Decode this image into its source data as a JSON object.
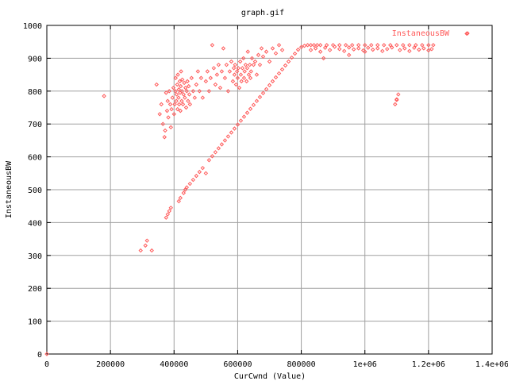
{
  "chart_data": {
    "type": "scatter",
    "title": "graph.gif",
    "xlabel": "CurCwnd (Value)",
    "ylabel": "InstaneousBW",
    "xlim": [
      0,
      1400000
    ],
    "ylim": [
      0,
      1000
    ],
    "x_ticks": [
      0,
      200000,
      400000,
      600000,
      800000,
      1000000,
      1200000,
      1400000
    ],
    "x_tick_labels": [
      "0",
      "200000",
      "400000",
      "600000",
      "800000",
      "1e+06",
      "1.2e+06",
      "1.4e+06"
    ],
    "y_ticks": [
      0,
      100,
      200,
      300,
      400,
      500,
      600,
      700,
      800,
      900,
      1000
    ],
    "y_tick_labels": [
      "0",
      "100",
      "200",
      "300",
      "400",
      "500",
      "600",
      "700",
      "800",
      "900",
      "1000"
    ],
    "grid": true,
    "legend_position": "top-right",
    "series": [
      {
        "name": "InstaneousBW",
        "color": "#ff5a5a",
        "marker": "diamond",
        "points": [
          [
            0,
            0
          ],
          [
            180000,
            785
          ],
          [
            295000,
            315
          ],
          [
            310000,
            330
          ],
          [
            315000,
            345
          ],
          [
            330000,
            315
          ],
          [
            345000,
            820
          ],
          [
            355000,
            730
          ],
          [
            360000,
            760
          ],
          [
            365000,
            700
          ],
          [
            370000,
            660
          ],
          [
            372000,
            680
          ],
          [
            375000,
            795
          ],
          [
            378000,
            740
          ],
          [
            380000,
            770
          ],
          [
            382000,
            720
          ],
          [
            385000,
            800
          ],
          [
            388000,
            760
          ],
          [
            390000,
            690
          ],
          [
            392000,
            745
          ],
          [
            395000,
            780
          ],
          [
            398000,
            810
          ],
          [
            400000,
            730
          ],
          [
            402000,
            760
          ],
          [
            404000,
            800
          ],
          [
            405000,
            840
          ],
          [
            407000,
            770
          ],
          [
            408000,
            790
          ],
          [
            410000,
            820
          ],
          [
            411000,
            745
          ],
          [
            412000,
            850
          ],
          [
            414000,
            780
          ],
          [
            415000,
            805
          ],
          [
            416000,
            760
          ],
          [
            418000,
            830
          ],
          [
            419000,
            795
          ],
          [
            420000,
            740
          ],
          [
            421000,
            815
          ],
          [
            422000,
            860
          ],
          [
            424000,
            770
          ],
          [
            425000,
            800
          ],
          [
            426000,
            835
          ],
          [
            428000,
            760
          ],
          [
            430000,
            790
          ],
          [
            432000,
            825
          ],
          [
            434000,
            780
          ],
          [
            436000,
            810
          ],
          [
            438000,
            750
          ],
          [
            440000,
            800
          ],
          [
            442000,
            830
          ],
          [
            444000,
            770
          ],
          [
            446000,
            815
          ],
          [
            448000,
            790
          ],
          [
            450000,
            760
          ],
          [
            455000,
            840
          ],
          [
            460000,
            800
          ],
          [
            465000,
            780
          ],
          [
            470000,
            820
          ],
          [
            475000,
            860
          ],
          [
            480000,
            800
          ],
          [
            485000,
            840
          ],
          [
            490000,
            780
          ],
          [
            500000,
            830
          ],
          [
            505000,
            860
          ],
          [
            510000,
            800
          ],
          [
            515000,
            840
          ],
          [
            520000,
            940
          ],
          [
            525000,
            870
          ],
          [
            530000,
            820
          ],
          [
            535000,
            850
          ],
          [
            540000,
            880
          ],
          [
            545000,
            810
          ],
          [
            550000,
            860
          ],
          [
            555000,
            930
          ],
          [
            560000,
            840
          ],
          [
            565000,
            880
          ],
          [
            570000,
            800
          ],
          [
            575000,
            860
          ],
          [
            580000,
            890
          ],
          [
            585000,
            830
          ],
          [
            588000,
            870
          ],
          [
            590000,
            850
          ],
          [
            592000,
            880
          ],
          [
            595000,
            820
          ],
          [
            598000,
            860
          ],
          [
            600000,
            840
          ],
          [
            602000,
            870
          ],
          [
            605000,
            810
          ],
          [
            608000,
            890
          ],
          [
            610000,
            850
          ],
          [
            612000,
            830
          ],
          [
            615000,
            870
          ],
          [
            618000,
            900
          ],
          [
            620000,
            840
          ],
          [
            622000,
            860
          ],
          [
            625000,
            880
          ],
          [
            628000,
            830
          ],
          [
            630000,
            870
          ],
          [
            632000,
            920
          ],
          [
            635000,
            850
          ],
          [
            638000,
            880
          ],
          [
            640000,
            840
          ],
          [
            642000,
            860
          ],
          [
            645000,
            900
          ],
          [
            650000,
            880
          ],
          [
            655000,
            890
          ],
          [
            660000,
            850
          ],
          [
            665000,
            910
          ],
          [
            670000,
            880
          ],
          [
            675000,
            930
          ],
          [
            680000,
            905
          ],
          [
            690000,
            920
          ],
          [
            700000,
            890
          ],
          [
            710000,
            930
          ],
          [
            720000,
            915
          ],
          [
            730000,
            940
          ],
          [
            740000,
            925
          ],
          [
            375000,
            415
          ],
          [
            380000,
            425
          ],
          [
            385000,
            435
          ],
          [
            390000,
            445
          ],
          [
            415000,
            465
          ],
          [
            420000,
            475
          ],
          [
            430000,
            490
          ],
          [
            435000,
            500
          ],
          [
            440000,
            507
          ],
          [
            450000,
            518
          ],
          [
            460000,
            530
          ],
          [
            470000,
            542
          ],
          [
            480000,
            554
          ],
          [
            490000,
            566
          ],
          [
            500000,
            550
          ],
          [
            510000,
            590
          ],
          [
            520000,
            602
          ],
          [
            530000,
            614
          ],
          [
            540000,
            626
          ],
          [
            550000,
            638
          ],
          [
            560000,
            650
          ],
          [
            570000,
            662
          ],
          [
            580000,
            674
          ],
          [
            590000,
            686
          ],
          [
            600000,
            698
          ],
          [
            610000,
            710
          ],
          [
            620000,
            722
          ],
          [
            630000,
            734
          ],
          [
            640000,
            746
          ],
          [
            650000,
            758
          ],
          [
            660000,
            770
          ],
          [
            670000,
            782
          ],
          [
            680000,
            794
          ],
          [
            690000,
            806
          ],
          [
            700000,
            818
          ],
          [
            710000,
            830
          ],
          [
            720000,
            842
          ],
          [
            730000,
            854
          ],
          [
            740000,
            866
          ],
          [
            750000,
            878
          ],
          [
            760000,
            890
          ],
          [
            770000,
            902
          ],
          [
            780000,
            914
          ],
          [
            790000,
            926
          ],
          [
            800000,
            934
          ],
          [
            810000,
            938
          ],
          [
            820000,
            940
          ],
          [
            830000,
            940
          ],
          [
            840000,
            940
          ],
          [
            850000,
            940
          ],
          [
            860000,
            940
          ],
          [
            880000,
            940
          ],
          [
            900000,
            940
          ],
          [
            920000,
            940
          ],
          [
            940000,
            940
          ],
          [
            960000,
            940
          ],
          [
            980000,
            940
          ],
          [
            1000000,
            940
          ],
          [
            1020000,
            940
          ],
          [
            1040000,
            940
          ],
          [
            1060000,
            940
          ],
          [
            1080000,
            940
          ],
          [
            1100000,
            940
          ],
          [
            1120000,
            940
          ],
          [
            1140000,
            940
          ],
          [
            1160000,
            940
          ],
          [
            1180000,
            940
          ],
          [
            1200000,
            940
          ],
          [
            1215000,
            940
          ],
          [
            830000,
            925
          ],
          [
            845000,
            930
          ],
          [
            860000,
            920
          ],
          [
            875000,
            932
          ],
          [
            890000,
            925
          ],
          [
            905000,
            935
          ],
          [
            920000,
            928
          ],
          [
            935000,
            922
          ],
          [
            950000,
            933
          ],
          [
            965000,
            927
          ],
          [
            980000,
            930
          ],
          [
            995000,
            924
          ],
          [
            1010000,
            932
          ],
          [
            1025000,
            926
          ],
          [
            1040000,
            930
          ],
          [
            1055000,
            922
          ],
          [
            1070000,
            928
          ],
          [
            1085000,
            933
          ],
          [
            1095000,
            760
          ],
          [
            1100000,
            775
          ],
          [
            1105000,
            790
          ],
          [
            1110000,
            925
          ],
          [
            1125000,
            930
          ],
          [
            1140000,
            922
          ],
          [
            1155000,
            932
          ],
          [
            1170000,
            926
          ],
          [
            1185000,
            930
          ],
          [
            1200000,
            924
          ],
          [
            1210000,
            928
          ],
          [
            870000,
            900
          ],
          [
            950000,
            910
          ],
          [
            1000000,
            920
          ],
          [
            1100000,
            773
          ],
          [
            1320000,
            975
          ]
        ]
      }
    ]
  }
}
